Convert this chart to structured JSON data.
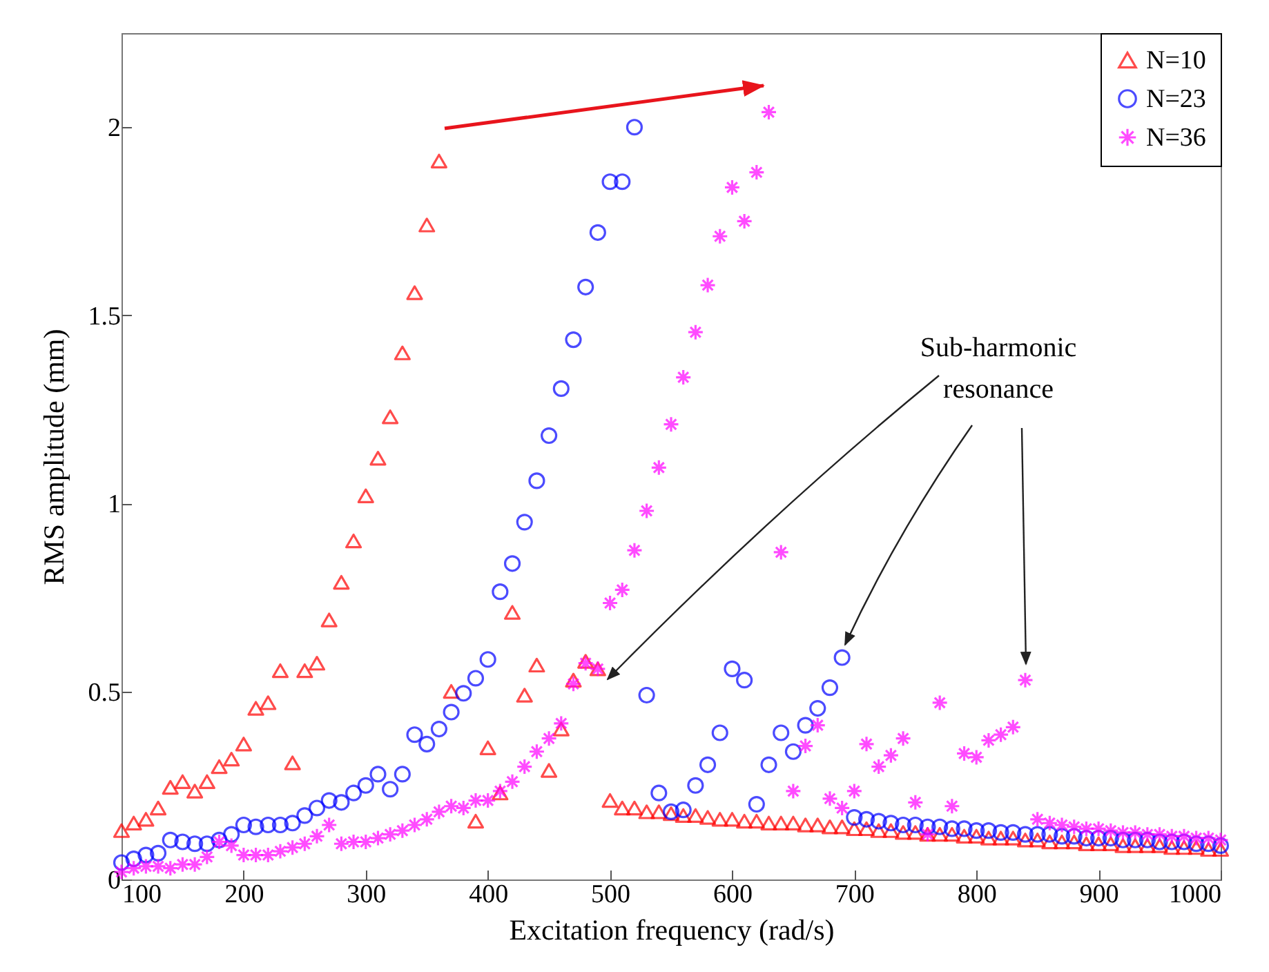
{
  "chart_data": {
    "type": "scatter",
    "xlabel": "Excitation frequency (rad/s)",
    "ylabel": "RMS amplitude (mm)",
    "xlim": [
      100,
      1000
    ],
    "ylim": [
      0,
      2.25
    ],
    "xticks": [
      100,
      200,
      300,
      400,
      500,
      600,
      700,
      800,
      900,
      1000
    ],
    "yticks": [
      0,
      0.5,
      1,
      1.5,
      2
    ],
    "grid": false,
    "legend": "top right",
    "annotations": [
      "Sub-harmonic resonance"
    ],
    "series": [
      {
        "name": "N=10",
        "color": "#ff0000",
        "marker": "triangle",
        "x": [
          100,
          110,
          120,
          130,
          140,
          150,
          160,
          170,
          180,
          190,
          200,
          210,
          220,
          230,
          240,
          250,
          260,
          270,
          280,
          290,
          300,
          310,
          320,
          330,
          340,
          350,
          360,
          370,
          390,
          400,
          410,
          420,
          430,
          440,
          450,
          460,
          470,
          480,
          490,
          500,
          510,
          520,
          530,
          540,
          550,
          560,
          570,
          580,
          590,
          600,
          610,
          620,
          630,
          640,
          650,
          660,
          670,
          680,
          690,
          700,
          710,
          720,
          730,
          740,
          750,
          760,
          770,
          780,
          790,
          800,
          810,
          820,
          830,
          840,
          850,
          860,
          870,
          880,
          890,
          900,
          910,
          920,
          930,
          940,
          950,
          960,
          970,
          980,
          990,
          1000
        ],
        "values": [
          0.13,
          0.15,
          0.16,
          0.19,
          0.245,
          0.26,
          0.235,
          0.26,
          0.3,
          0.32,
          0.36,
          0.455,
          0.47,
          0.555,
          0.31,
          0.555,
          0.575,
          0.69,
          0.79,
          0.9,
          1.02,
          1.12,
          1.23,
          1.4,
          1.56,
          1.74,
          1.91,
          0.5,
          0.155,
          0.35,
          0.23,
          0.71,
          0.49,
          0.57,
          0.29,
          0.4,
          0.53,
          0.58,
          0.56,
          0.21,
          0.19,
          0.19,
          0.18,
          0.18,
          0.175,
          0.17,
          0.17,
          0.165,
          0.16,
          0.16,
          0.155,
          0.155,
          0.15,
          0.15,
          0.15,
          0.145,
          0.145,
          0.14,
          0.14,
          0.135,
          0.135,
          0.13,
          0.13,
          0.125,
          0.125,
          0.12,
          0.12,
          0.12,
          0.115,
          0.115,
          0.11,
          0.11,
          0.11,
          0.105,
          0.105,
          0.1,
          0.1,
          0.1,
          0.095,
          0.095,
          0.095,
          0.09,
          0.09,
          0.09,
          0.09,
          0.085,
          0.085,
          0.085,
          0.08,
          0.08
        ]
      },
      {
        "name": "N=23",
        "color": "#0000ff",
        "marker": "circle",
        "x": [
          100,
          110,
          120,
          130,
          140,
          150,
          160,
          170,
          180,
          190,
          200,
          210,
          220,
          230,
          240,
          250,
          260,
          270,
          280,
          290,
          300,
          310,
          320,
          330,
          340,
          350,
          360,
          370,
          380,
          390,
          400,
          410,
          420,
          430,
          440,
          450,
          460,
          470,
          480,
          490,
          500,
          510,
          520,
          530,
          540,
          550,
          560,
          570,
          580,
          590,
          600,
          610,
          620,
          630,
          640,
          650,
          660,
          670,
          680,
          690,
          700,
          710,
          720,
          730,
          740,
          750,
          760,
          770,
          780,
          790,
          800,
          810,
          820,
          830,
          840,
          850,
          860,
          870,
          880,
          890,
          900,
          910,
          920,
          930,
          940,
          950,
          960,
          970,
          980,
          990,
          1000
        ],
        "values": [
          0.045,
          0.055,
          0.065,
          0.07,
          0.105,
          0.1,
          0.095,
          0.095,
          0.105,
          0.12,
          0.145,
          0.14,
          0.145,
          0.145,
          0.15,
          0.17,
          0.19,
          0.21,
          0.205,
          0.23,
          0.25,
          0.28,
          0.24,
          0.28,
          0.385,
          0.36,
          0.4,
          0.445,
          0.495,
          0.535,
          0.585,
          0.765,
          0.84,
          0.95,
          1.06,
          1.18,
          1.305,
          1.435,
          1.575,
          1.72,
          1.855,
          1.855,
          2.0,
          0.49,
          0.23,
          0.18,
          0.185,
          0.25,
          0.305,
          0.39,
          0.56,
          0.53,
          0.2,
          0.305,
          0.39,
          0.34,
          0.41,
          0.455,
          0.51,
          0.59,
          0.165,
          0.16,
          0.155,
          0.15,
          0.145,
          0.145,
          0.14,
          0.14,
          0.135,
          0.135,
          0.13,
          0.13,
          0.125,
          0.125,
          0.12,
          0.12,
          0.12,
          0.115,
          0.115,
          0.11,
          0.11,
          0.11,
          0.105,
          0.105,
          0.105,
          0.1,
          0.1,
          0.1,
          0.095,
          0.095,
          0.09
        ]
      },
      {
        "name": "N=36",
        "color": "#ff00ff",
        "marker": "cross",
        "x": [
          100,
          110,
          120,
          130,
          140,
          150,
          160,
          170,
          180,
          190,
          200,
          210,
          220,
          230,
          240,
          250,
          260,
          270,
          280,
          290,
          300,
          310,
          320,
          330,
          340,
          350,
          360,
          370,
          380,
          390,
          400,
          410,
          420,
          430,
          440,
          450,
          460,
          470,
          480,
          490,
          500,
          510,
          520,
          530,
          540,
          550,
          560,
          570,
          580,
          590,
          600,
          610,
          620,
          630,
          640,
          650,
          660,
          670,
          680,
          690,
          700,
          710,
          720,
          730,
          740,
          750,
          760,
          770,
          780,
          790,
          800,
          810,
          820,
          830,
          840,
          850,
          860,
          870,
          880,
          890,
          900,
          910,
          920,
          930,
          940,
          950,
          960,
          970,
          980,
          990,
          1000
        ],
        "values": [
          0.02,
          0.03,
          0.035,
          0.035,
          0.03,
          0.04,
          0.04,
          0.06,
          0.1,
          0.09,
          0.065,
          0.065,
          0.065,
          0.075,
          0.085,
          0.095,
          0.115,
          0.145,
          0.095,
          0.1,
          0.1,
          0.11,
          0.12,
          0.13,
          0.145,
          0.16,
          0.18,
          0.195,
          0.19,
          0.21,
          0.21,
          0.235,
          0.26,
          0.3,
          0.34,
          0.375,
          0.415,
          0.52,
          0.575,
          0.56,
          0.735,
          0.77,
          0.875,
          0.98,
          1.095,
          1.21,
          1.335,
          1.455,
          1.58,
          1.71,
          1.84,
          1.75,
          1.88,
          2.04,
          0.87,
          0.235,
          0.355,
          0.41,
          0.215,
          0.19,
          0.235,
          0.36,
          0.3,
          0.33,
          0.375,
          0.205,
          0.12,
          0.47,
          0.195,
          0.335,
          0.325,
          0.37,
          0.385,
          0.405,
          0.53,
          0.16,
          0.15,
          0.145,
          0.14,
          0.135,
          0.135,
          0.13,
          0.125,
          0.125,
          0.12,
          0.12,
          0.115,
          0.115,
          0.11,
          0.11,
          0.105
        ]
      }
    ]
  }
}
